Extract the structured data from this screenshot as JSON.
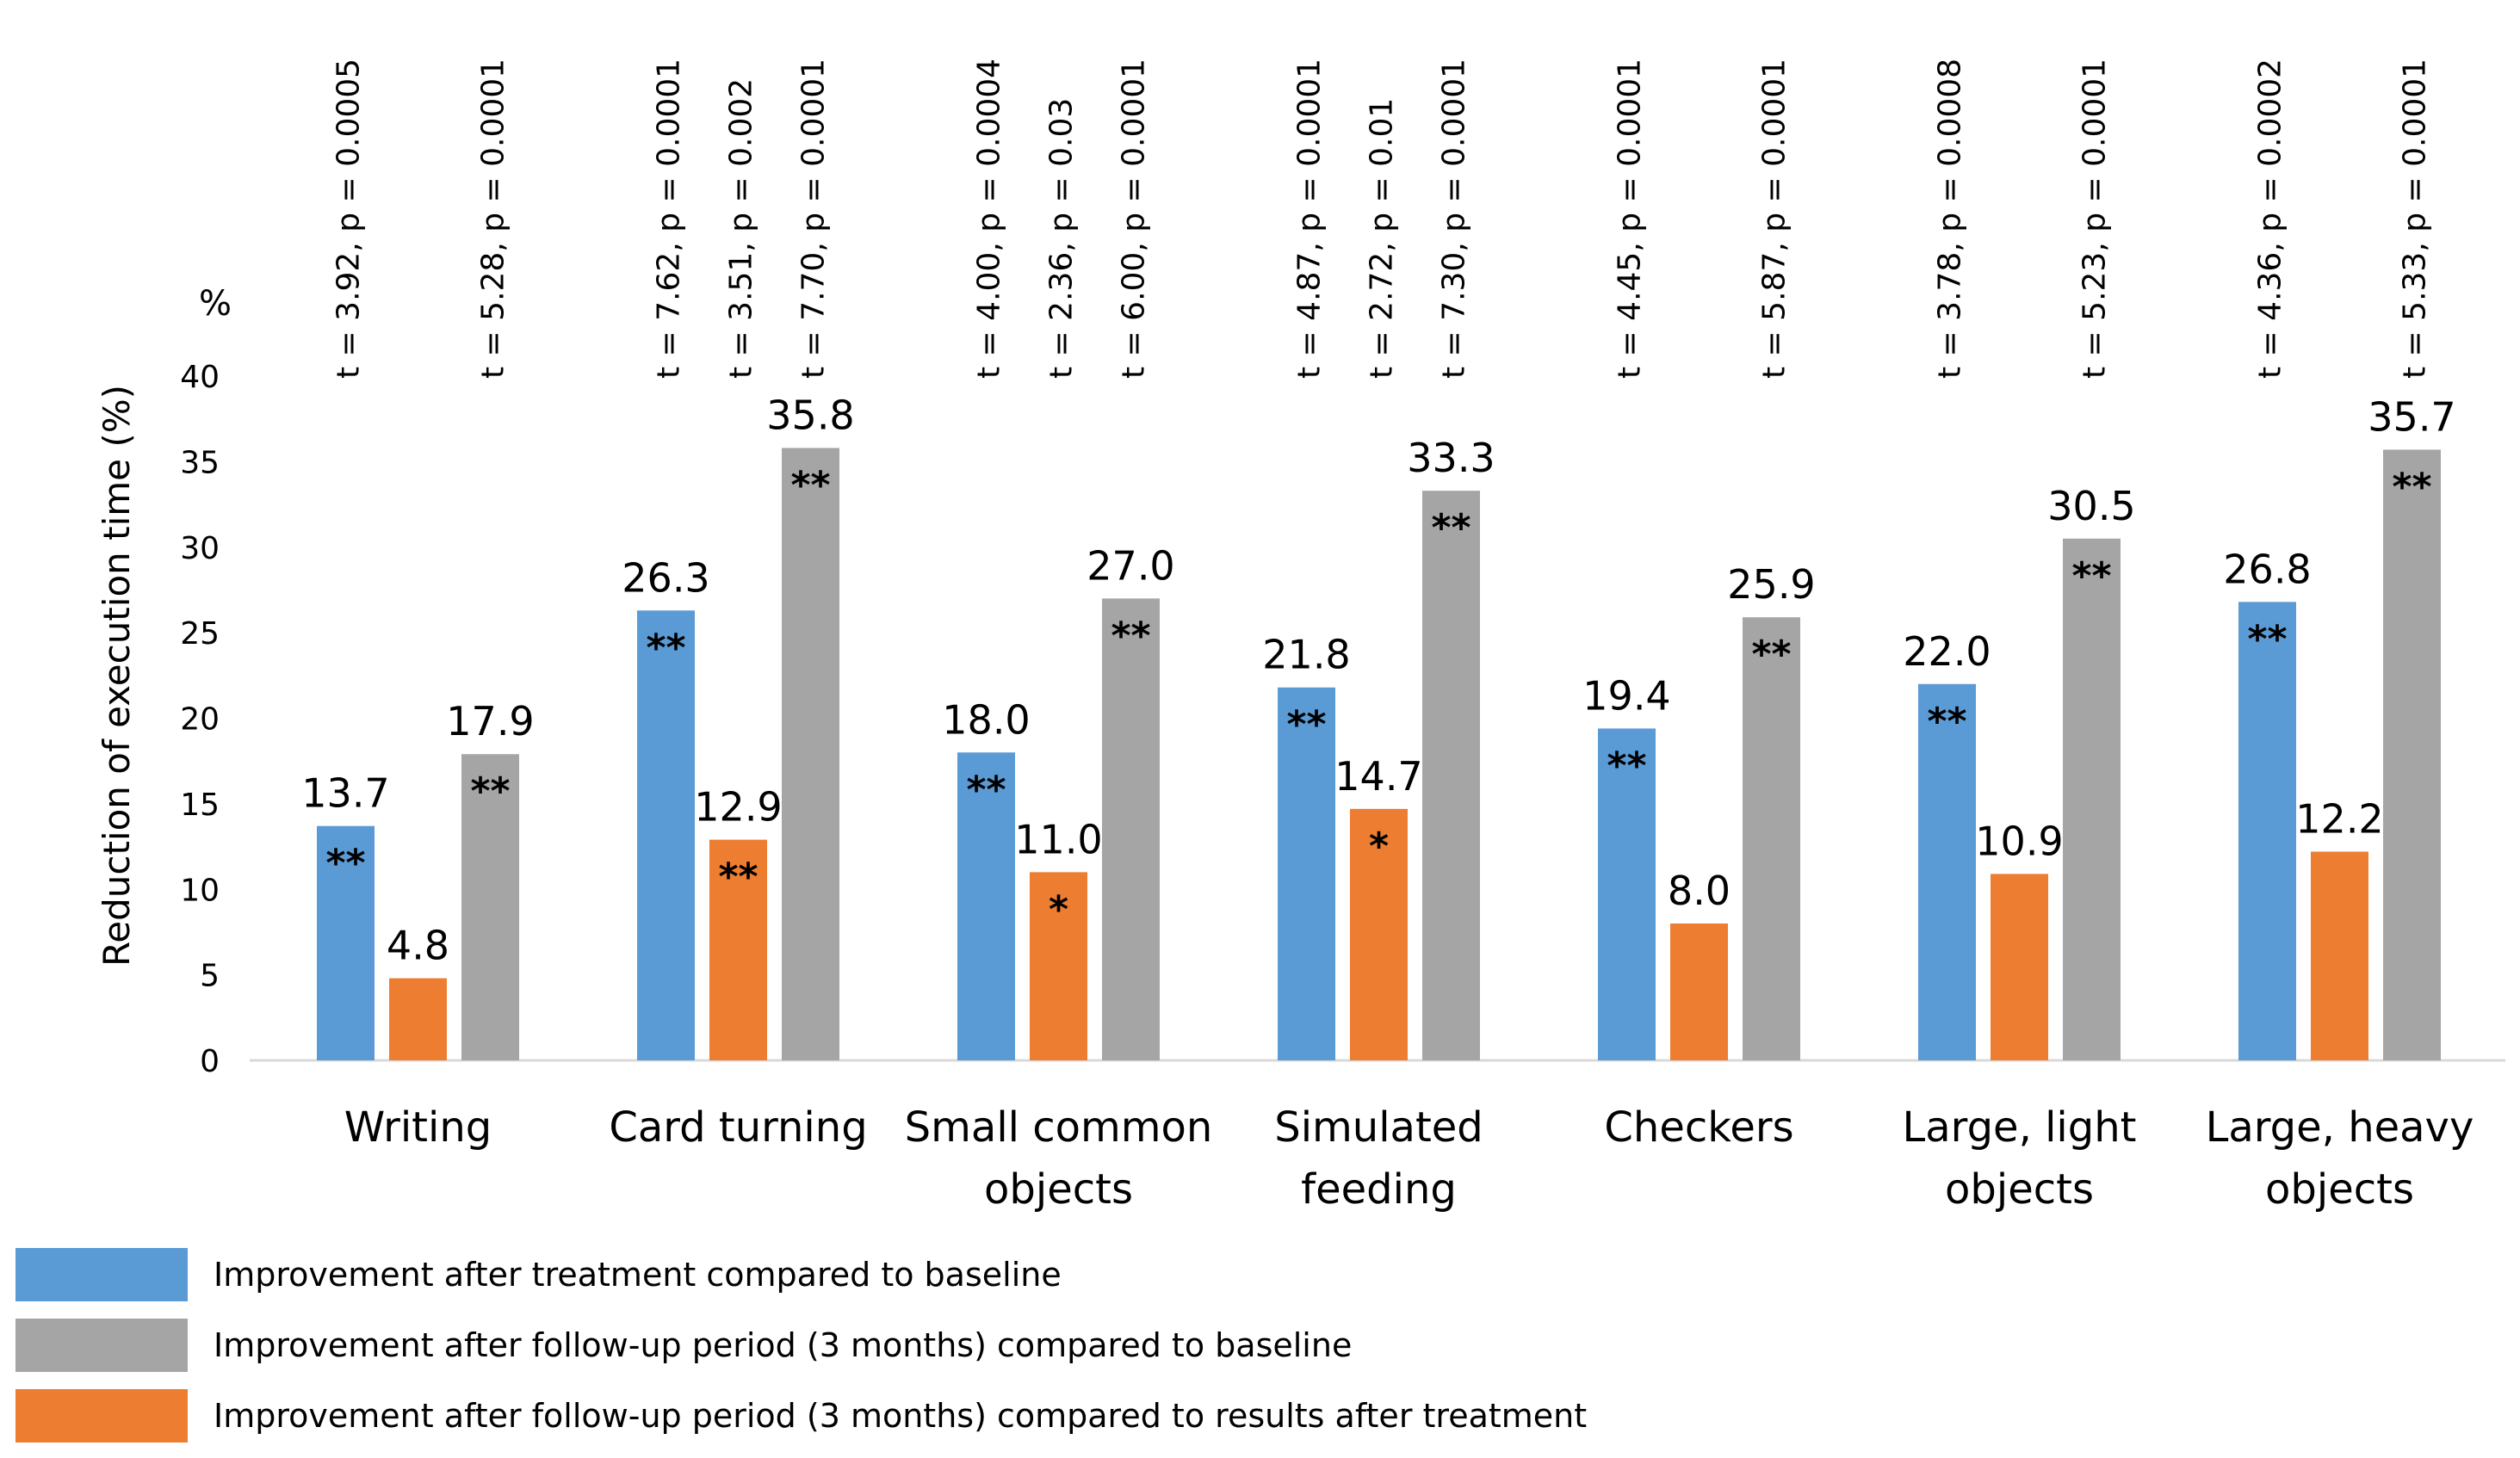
{
  "chart_data": {
    "type": "bar",
    "y_unit_label": "%",
    "ylabel": "Reduction of execution time  (%)",
    "ylim": [
      0,
      40
    ],
    "yticks": [
      0,
      5,
      10,
      15,
      20,
      25,
      30,
      35,
      40
    ],
    "grid": false,
    "legend_position": "bottom-left",
    "categories": [
      [
        "Writing"
      ],
      [
        "Card turning"
      ],
      [
        "Small common",
        "objects"
      ],
      [
        "Simulated",
        "feeding"
      ],
      [
        "Checkers"
      ],
      [
        "Large, light",
        "objects"
      ],
      [
        "Large, heavy",
        "objects"
      ]
    ],
    "series": [
      {
        "name": "Improvement after treatment compared to baseline",
        "color": "#5b9bd5",
        "values": [
          13.7,
          26.3,
          18.0,
          21.8,
          19.4,
          22.0,
          26.8
        ],
        "labels": [
          "13.7",
          "26.3",
          "18.0",
          "21.8",
          "19.4",
          "22.0",
          "26.8"
        ],
        "significance": [
          "**",
          "**",
          "**",
          "**",
          "**",
          "**",
          "**"
        ],
        "tests": [
          "t = 3.92, p = 0.0005",
          "t = 7.62, p = 0.0001",
          "t = 4.00, p = 0.0004",
          "t = 4.87, p = 0.0001",
          "t = 4.45, p = 0.0001",
          "t = 3.78, p = 0.0008",
          "t = 4.36, p = 0.0002"
        ]
      },
      {
        "name": "Improvement after follow-up period (3 months) compared to results after treatment",
        "color": "#ed7d31",
        "values": [
          4.8,
          12.9,
          11.0,
          14.7,
          8.0,
          10.9,
          12.2
        ],
        "labels": [
          "4.8",
          "12.9",
          "11.0",
          "14.7",
          "8.0",
          "10.9",
          "12.2"
        ],
        "significance": [
          "",
          "**",
          "*",
          "*",
          "",
          "",
          ""
        ],
        "tests": [
          "",
          "t = 3.51, p = 0.002",
          "t = 2.36, p = 0.03",
          "t = 2.72, p = 0.01",
          "",
          "",
          ""
        ]
      },
      {
        "name": "Improvement after follow-up period (3 months) compared to baseline",
        "color": "#a5a5a5",
        "values": [
          17.9,
          35.8,
          27.0,
          33.3,
          25.9,
          30.5,
          35.7
        ],
        "labels": [
          "17.9",
          "35.8",
          "27.0",
          "33.3",
          "25.9",
          "30.5",
          "35.7"
        ],
        "significance": [
          "**",
          "**",
          "**",
          "**",
          "**",
          "**",
          "**"
        ],
        "tests": [
          "t = 5.28, p = 0.0001",
          "t = 7.70, p = 0.0001",
          "t = 6.00, p = 0.0001",
          "t = 7.30, p = 0.0001",
          "t = 5.87, p = 0.0001",
          "t = 5.23, p = 0.0001",
          "t = 5.33, p = 0.0001"
        ]
      }
    ],
    "legend": [
      {
        "label": "Improvement after treatment compared to baseline",
        "color": "#5b9bd5"
      },
      {
        "label": "Improvement after follow-up period (3 months) compared to baseline",
        "color": "#a5a5a5"
      },
      {
        "label": "Improvement after follow-up period (3 months) compared to results after treatment",
        "color": "#ed7d31"
      }
    ]
  }
}
